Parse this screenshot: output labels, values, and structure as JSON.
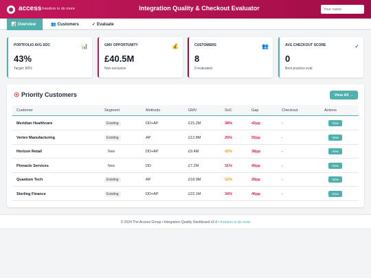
{
  "header": {
    "logo_text": "access",
    "tagline": "freedom to do more",
    "title": "Integration Quality & Checkout Evaluator",
    "name_placeholder": "Your name"
  },
  "tabs": [
    {
      "label": "Overview",
      "icon": "chart-icon",
      "active": true
    },
    {
      "label": "Customers",
      "icon": "people-icon",
      "active": false
    },
    {
      "label": "Evaluate",
      "icon": "check-icon",
      "active": false
    }
  ],
  "kpis": [
    {
      "label": "Portfolio Avg SoC",
      "icon": "📊",
      "value": "43%",
      "sub": "Target: 80%"
    },
    {
      "label": "GMV Opportunity",
      "icon": "💰",
      "value": "£40.5M",
      "sub": "Non-exclusive"
    },
    {
      "label": "Customers",
      "icon": "👥",
      "value": "8",
      "sub": "0 evaluated"
    },
    {
      "label": "Avg Checkout Score",
      "icon": "✓",
      "value": "0",
      "sub": "Best practice eval"
    }
  ],
  "priority": {
    "title": "Priority Customers",
    "view_all": "View All →",
    "columns": [
      "Customer",
      "Segment",
      "Methods",
      "GMV",
      "SoC",
      "Gap",
      "Checkout",
      "Actions"
    ],
    "view_label": "View",
    "rows": [
      {
        "customer": "Meridian Healthcare",
        "segment": "Existing",
        "methods": "DD+AP",
        "gmv": "£15.2M",
        "soc": "38%",
        "gap": "42pp",
        "checkout": "-",
        "soc_color": "#d81b60",
        "gap_color": "#d81b60"
      },
      {
        "customer": "Vertex Manufacturing",
        "segment": "Existing",
        "methods": "AP",
        "gmv": "£12.8M",
        "soc": "25%",
        "gap": "55pp",
        "checkout": "-",
        "soc_color": "#d81b60",
        "gap_color": "#d81b60"
      },
      {
        "customer": "Horizon Retail",
        "segment": "New",
        "methods": "DD+AP",
        "gmv": "£9.4M",
        "soc": "42%",
        "gap": "38pp",
        "checkout": "-",
        "soc_color": "#f59e0b",
        "gap_color": "#d81b60"
      },
      {
        "customer": "Pinnacle Services",
        "segment": "New",
        "methods": "DD",
        "gmv": "£7.2M",
        "soc": "31%",
        "gap": "49pp",
        "checkout": "-",
        "soc_color": "#d81b60",
        "gap_color": "#d81b60"
      },
      {
        "customer": "Quantum Tech",
        "segment": "Existing",
        "methods": "AP",
        "gmv": "£18.9M",
        "soc": "52%",
        "gap": "28pp",
        "checkout": "-",
        "soc_color": "#f59e0b",
        "gap_color": "#d81b60"
      },
      {
        "customer": "Sterling Finance",
        "segment": "Existing",
        "methods": "DD+AP",
        "gmv": "£22.1M",
        "soc": "34%",
        "gap": "46pp",
        "checkout": "-",
        "soc_color": "#d81b60",
        "gap_color": "#d81b60"
      }
    ]
  },
  "footer": {
    "text": "© 2024 The Access Group • Integration Quality Dashboard v2.0 • ",
    "tag": "freedom to do more"
  }
}
